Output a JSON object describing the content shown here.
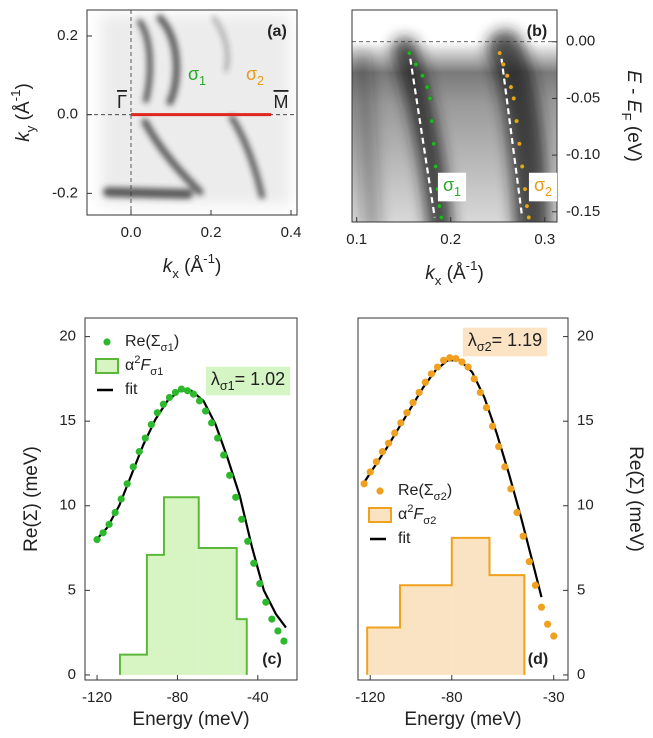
{
  "chart_data": [
    {
      "type": "image",
      "panel_label": "(a)",
      "xlim": [
        -0.11,
        0.415
      ],
      "ylim": [
        -0.255,
        0.266
      ],
      "xticks": [
        {
          "value": 0,
          "label": "0.0"
        },
        0.2,
        0.4
      ],
      "yticks": [
        -0.2,
        {
          "value": 0,
          "label": "0.0"
        },
        0.2
      ],
      "y_axis": "left",
      "x_label": [
        {
          "t": "k",
          "italic": true
        },
        {
          "t": "x",
          "sub": true
        },
        {
          "t": " (Å"
        },
        {
          "t": "-1",
          "sup": true
        },
        {
          "t": ")"
        }
      ],
      "y_label": [
        {
          "t": "k",
          "italic": true
        },
        {
          "t": "y",
          "sub": true
        },
        {
          "t": " (Å"
        },
        {
          "t": "-1",
          "sup": true
        },
        {
          "t": ")"
        }
      ],
      "annotations": [
        {
          "text": [
            {
              "t": "σ"
            },
            {
              "t": "1",
              "sub": true
            }
          ],
          "color": "#2aa82a"
        },
        {
          "text": [
            {
              "t": "σ"
            },
            {
              "t": "2",
              "sub": true
            }
          ],
          "color": "#e89a17"
        },
        {
          "text": [
            {
              "t": "Γ"
            }
          ],
          "overline": true
        },
        {
          "text": [
            {
              "t": "M"
            }
          ],
          "overline": true
        }
      ],
      "series": [
        {
          "kind": "line",
          "color": "#e0261f",
          "x": [
            0,
            0.35
          ],
          "values": [
            0,
            0
          ]
        }
      ]
    },
    {
      "type": "image",
      "panel_label": "(b)",
      "xlim": [
        0.095,
        0.313
      ],
      "ylim": [
        -0.159,
        0.028
      ],
      "xticks": [
        0.1,
        0.2,
        0.3
      ],
      "yticks": [
        {
          "value": 0,
          "label": "0.00"
        },
        -0.05,
        {
          "value": -0.1,
          "label": "-0.10"
        },
        -0.15
      ],
      "y_axis": "right",
      "x_label": [
        {
          "t": "k",
          "italic": true
        },
        {
          "t": "x",
          "sub": true
        },
        {
          "t": " (Å"
        },
        {
          "t": "-1",
          "sup": true
        },
        {
          "t": ")"
        }
      ],
      "y_label": [
        {
          "t": "E",
          "italic": true
        },
        {
          "t": " - "
        },
        {
          "t": "E",
          "italic": true
        },
        {
          "t": "F",
          "sub": true
        },
        {
          "t": " (eV)"
        }
      ],
      "annotations": [
        {
          "text": [
            {
              "t": "σ"
            },
            {
              "t": "1",
              "sub": true
            }
          ],
          "color": "#2aa82a",
          "background": "#ffffff"
        },
        {
          "text": [
            {
              "t": "σ"
            },
            {
              "t": "2",
              "sub": true
            }
          ],
          "color": "#e89a17",
          "background": "#ffffff"
        }
      ],
      "series": [
        {
          "kind": "line",
          "color": "#ffffff",
          "dash": true,
          "x": [
            0.157,
            0.183
          ],
          "values": [
            -0.015,
            -0.155
          ]
        },
        {
          "kind": "line",
          "color": "#ffffff",
          "dash": true,
          "x": [
            0.254,
            0.276
          ],
          "values": [
            -0.015,
            -0.155
          ]
        },
        {
          "kind": "scatter",
          "color": "#22b522",
          "x": [
            0.156,
            0.163,
            0.17,
            0.175,
            0.178,
            0.18,
            0.182,
            0.184,
            0.186,
            0.188,
            0.19
          ],
          "values": [
            -0.01,
            -0.02,
            -0.03,
            -0.04,
            -0.05,
            -0.07,
            -0.09,
            -0.11,
            -0.13,
            -0.145,
            -0.155
          ]
        },
        {
          "kind": "scatter",
          "color": "#f0a020",
          "x": [
            0.252,
            0.256,
            0.26,
            0.264,
            0.267,
            0.27,
            0.273,
            0.276,
            0.279,
            0.281,
            0.283
          ],
          "values": [
            -0.01,
            -0.02,
            -0.03,
            -0.04,
            -0.05,
            -0.07,
            -0.09,
            -0.11,
            -0.13,
            -0.145,
            -0.155
          ]
        }
      ]
    },
    {
      "type": "self_energy",
      "panel_label": "(c)",
      "xlim": [
        -126,
        -20.5
      ],
      "ylim": [
        -0.3,
        21.1
      ],
      "xticks": [
        -120,
        -80,
        -40
      ],
      "yticks": [
        0,
        5,
        10,
        15,
        20
      ],
      "y_axis": "left",
      "legend": "upper left",
      "x_label": [
        {
          "t": "Energy (meV)"
        }
      ],
      "y_label": [
        {
          "t": "Re(Σ) (meV)"
        }
      ],
      "annotations": [
        {
          "text": [
            {
              "t": "λ"
            },
            {
              "t": "σ1",
              "sub": true
            },
            {
              "t": "= 1.02"
            }
          ],
          "background": "#d5f5c4"
        }
      ],
      "series": [
        {
          "name": [
            {
              "t": "Re(Σ"
            },
            {
              "t": "σ1",
              "sub": true
            },
            {
              "t": ")"
            }
          ],
          "kind": "scatter",
          "color": "#2eb82e",
          "x": [
            -120,
            -117,
            -114,
            -111,
            -108,
            -105,
            -102,
            -99,
            -96,
            -93,
            -90,
            -87,
            -84,
            -81,
            -78,
            -75,
            -72,
            -69,
            -66,
            -63,
            -60,
            -57,
            -54,
            -51,
            -48,
            -45,
            -42,
            -39,
            -36,
            -33,
            -30,
            -27
          ],
          "values": [
            8.0,
            8.4,
            8.9,
            9.6,
            10.4,
            11.3,
            12.3,
            13.2,
            14.0,
            14.8,
            15.5,
            16.0,
            16.4,
            16.7,
            16.9,
            16.8,
            16.6,
            16.2,
            15.6,
            14.9,
            14.0,
            13.0,
            11.8,
            10.5,
            9.2,
            7.9,
            6.6,
            5.4,
            4.3,
            3.3,
            2.6,
            2.0
          ]
        },
        {
          "name": [
            {
              "t": "α"
            },
            {
              "t": "2",
              "sup": true
            },
            {
              "t": "F",
              "italic": true
            },
            {
              "t": "σ1",
              "sub": true
            }
          ],
          "kind": "histogram",
          "color": "#5cb83a",
          "fill_color": "#d6f5c2",
          "bins": [
            -108.6,
            -95.2,
            -86.7,
            -69.4,
            -50.5,
            -45.5
          ],
          "values": [
            1.2,
            7.1,
            10.5,
            7.5,
            3.3
          ]
        },
        {
          "name": [
            {
              "t": "fit"
            }
          ],
          "kind": "line",
          "color": "#000000",
          "x": [
            -121,
            -115,
            -109,
            -103,
            -97,
            -91,
            -85,
            -79,
            -73,
            -67,
            -61,
            -55,
            -49,
            -43,
            -37,
            -31,
            -26
          ],
          "values": [
            7.9,
            8.7,
            10.0,
            11.8,
            13.6,
            15.1,
            16.2,
            16.8,
            16.8,
            16.2,
            14.8,
            12.8,
            10.6,
            7.6,
            5.0,
            3.6,
            2.8
          ]
        }
      ]
    },
    {
      "type": "self_energy",
      "panel_label": "(d)",
      "xlim": [
        -126,
        -23
      ],
      "ylim": [
        -0.3,
        21.1
      ],
      "xticks": [
        -120,
        -80,
        -30
      ],
      "yticks": [
        0,
        5,
        10,
        15,
        20
      ],
      "y_axis": "right",
      "legend": "center left",
      "x_label": [
        {
          "t": "Energy (meV)"
        }
      ],
      "y_label": [
        {
          "t": "Re(Σ) (meV)"
        }
      ],
      "annotations": [
        {
          "text": [
            {
              "t": "λ"
            },
            {
              "t": "σ2",
              "sub": true
            },
            {
              "t": "= 1.19"
            }
          ],
          "background": "#fbe3c4"
        }
      ],
      "series": [
        {
          "name": [
            {
              "t": "Re(Σ"
            },
            {
              "t": "σ2",
              "sub": true
            },
            {
              "t": ")"
            }
          ],
          "kind": "scatter",
          "color": "#f0a020",
          "x": [
            -123,
            -120,
            -117,
            -114,
            -111,
            -108,
            -105,
            -102,
            -99,
            -96,
            -93,
            -90,
            -87,
            -84,
            -81,
            -78,
            -75,
            -72,
            -69,
            -66,
            -63,
            -60,
            -57,
            -54,
            -51,
            -48,
            -45,
            -42,
            -39,
            -36,
            -33,
            -30
          ],
          "values": [
            11.3,
            12.0,
            12.6,
            13.2,
            13.7,
            14.3,
            14.9,
            15.5,
            16.1,
            16.7,
            17.3,
            17.8,
            18.2,
            18.6,
            18.75,
            18.7,
            18.5,
            18.2,
            17.5,
            16.7,
            15.8,
            14.7,
            13.5,
            12.3,
            11.0,
            9.6,
            8.2,
            6.7,
            5.3,
            4.0,
            3.0,
            2.3
          ]
        },
        {
          "name": [
            {
              "t": "α"
            },
            {
              "t": "2",
              "sup": true
            },
            {
              "t": "F",
              "italic": true
            },
            {
              "t": "σ2",
              "sub": true
            }
          ],
          "kind": "histogram",
          "color": "#f0a21f",
          "fill_color": "#f9e3c2",
          "bins": [
            -121.5,
            -105.4,
            -80,
            -61.5,
            -44.4
          ],
          "values": [
            2.8,
            5.3,
            8.1,
            5.9
          ]
        },
        {
          "name": [
            {
              "t": "fit"
            }
          ],
          "kind": "line",
          "color": "#000000",
          "x": [
            -124,
            -118,
            -112,
            -106,
            -100,
            -94,
            -88,
            -82,
            -76,
            -70,
            -64,
            -58,
            -52,
            -46,
            -40,
            -36
          ],
          "values": [
            11.2,
            12.3,
            13.4,
            14.6,
            15.8,
            17.0,
            18.0,
            18.6,
            18.6,
            17.9,
            16.4,
            14.3,
            11.9,
            9.3,
            6.5,
            4.6
          ]
        }
      ]
    }
  ]
}
